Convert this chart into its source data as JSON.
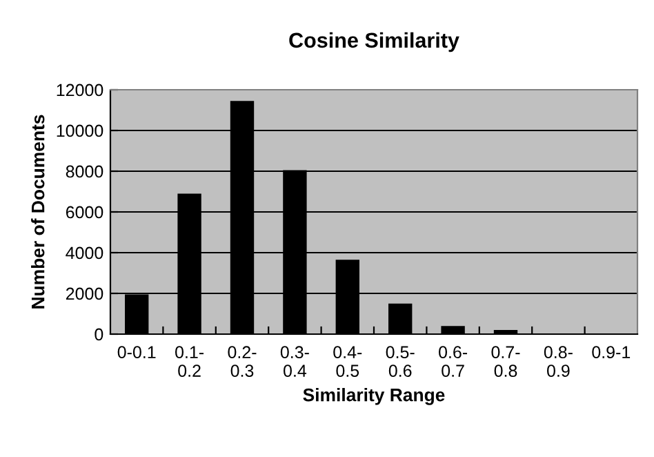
{
  "chart_data": {
    "type": "bar",
    "title": "Cosine Similarity",
    "xlabel": "Similarity Range",
    "ylabel": "Number of Documents",
    "categories": [
      "0-0.1",
      "0.1-\n0.2",
      "0.2-\n0.3",
      "0.3-\n0.4",
      "0.4-\n0.5",
      "0.5-\n0.6",
      "0.6-\n0.7",
      "0.7-\n0.8",
      "0.8-\n0.9",
      "0.9-1"
    ],
    "values": [
      1950,
      6900,
      11450,
      8050,
      3650,
      1500,
      400,
      200,
      0,
      0
    ],
    "color": "#000000",
    "ylim": [
      0,
      12000
    ],
    "yticks": [
      0,
      2000,
      4000,
      6000,
      8000,
      10000,
      12000
    ],
    "grid": "y"
  }
}
